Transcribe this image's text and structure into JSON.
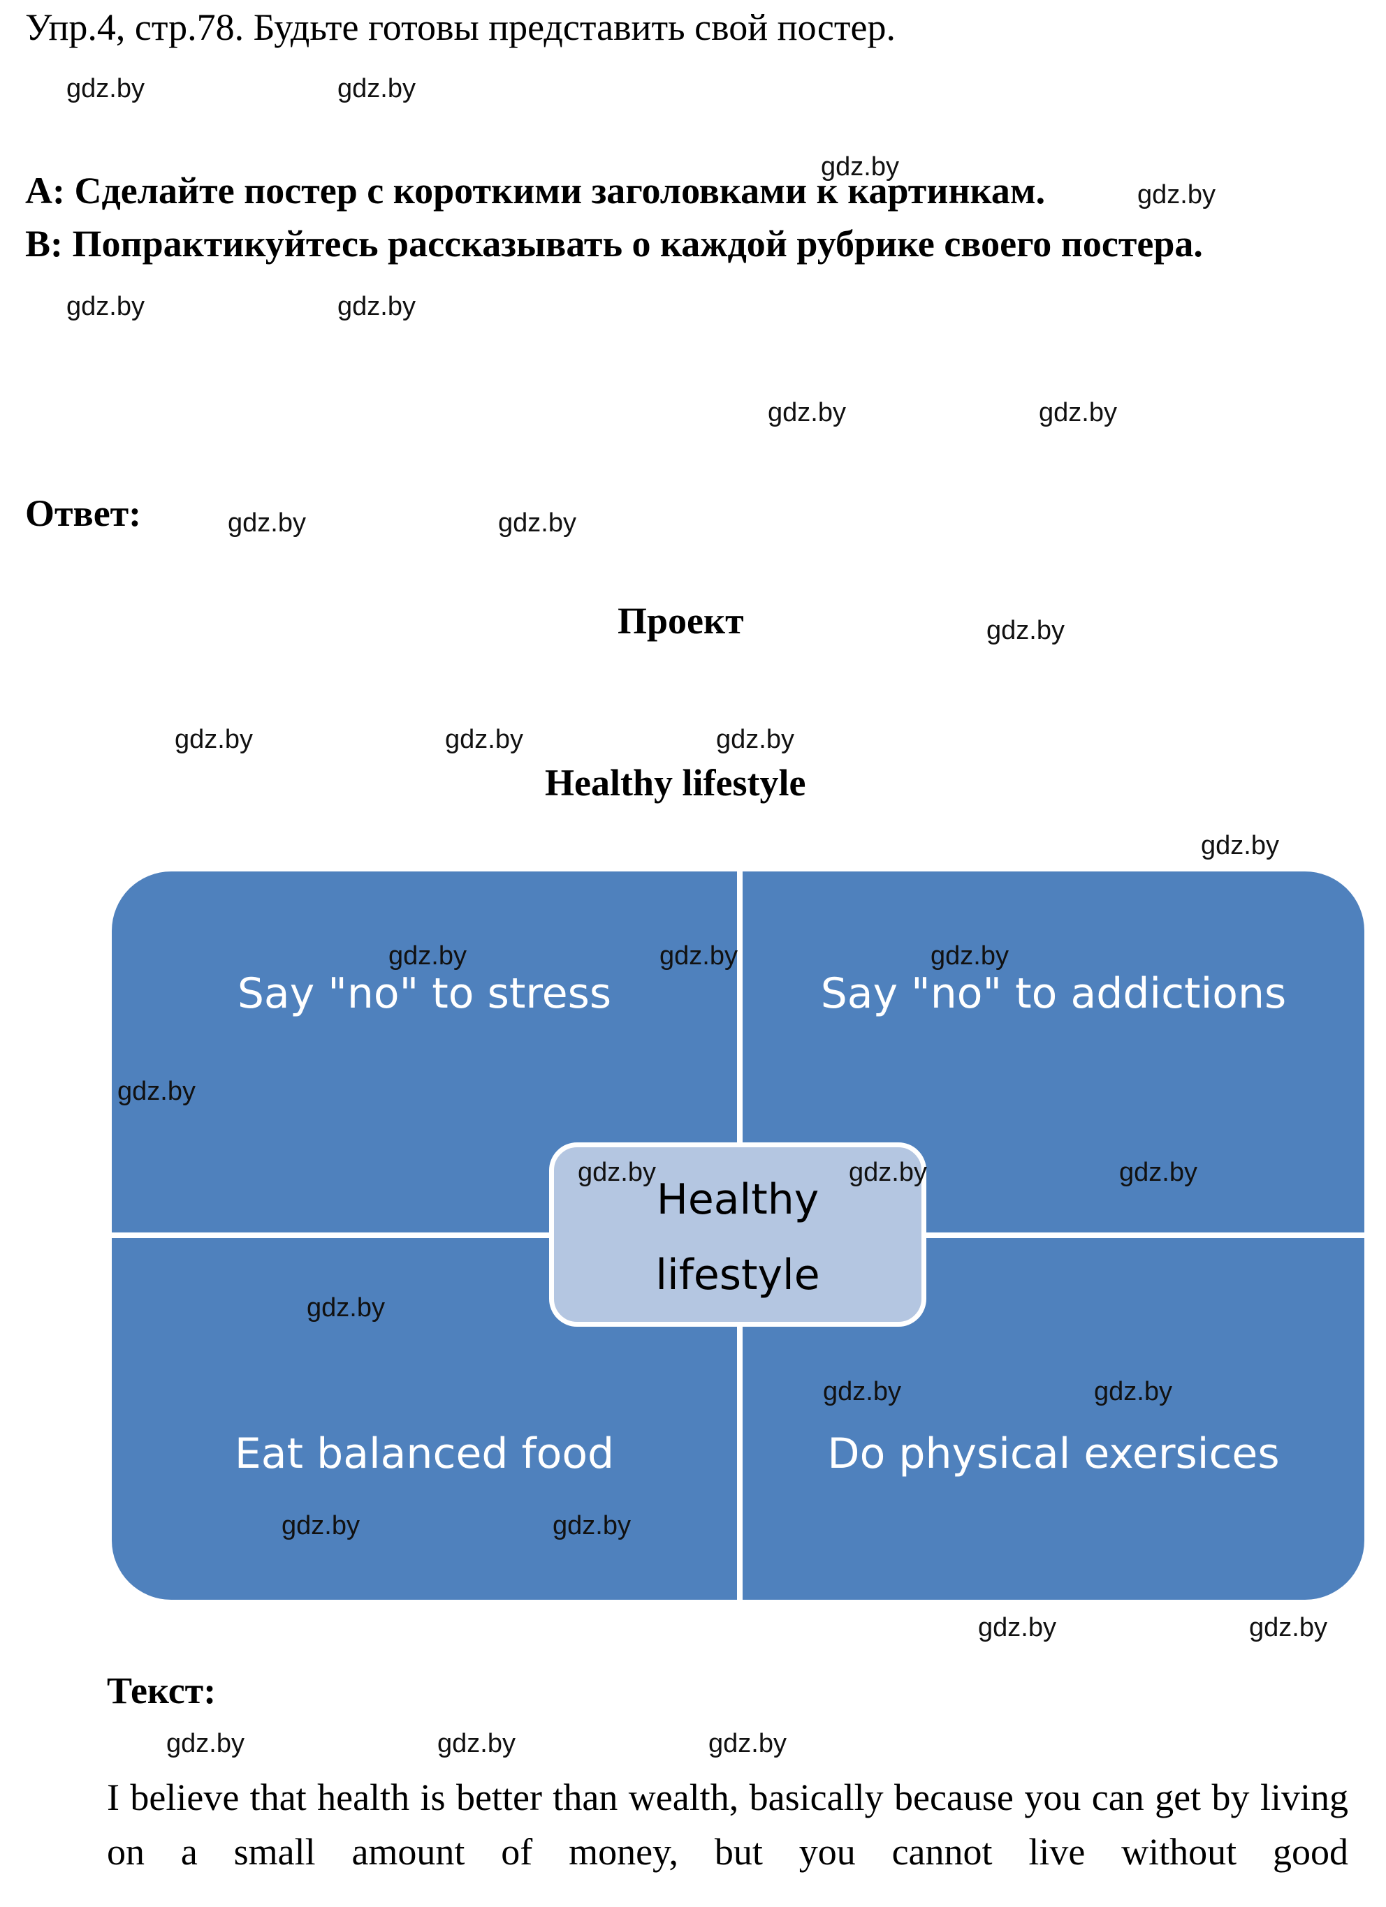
{
  "task": {
    "title": "Упр.4, стр.78. Будьте готовы представить свой постер.",
    "a": "А: Сделайте постер с короткими заголовками к картинкам.",
    "b": "В: Попрактикуйтесь рассказывать о каждой рубрике своего постера."
  },
  "answer_label": "Ответ:",
  "project_label": "Проект",
  "poster_title": "Healthy lifestyle",
  "diagram": {
    "center_line1": "Healthy",
    "center_line2": "lifestyle",
    "top_left": "Say \"no\" to stress",
    "top_right": "Say \"no\" to addictions",
    "bottom_left": "Eat balanced food",
    "bottom_right": "Do physical exersices"
  },
  "text_label": "Текст:",
  "paragraph": "I believe that health is better than wealth, basically because you can get by living on a small amount of money, but you cannot live without good",
  "watermark": "gdz.by"
}
